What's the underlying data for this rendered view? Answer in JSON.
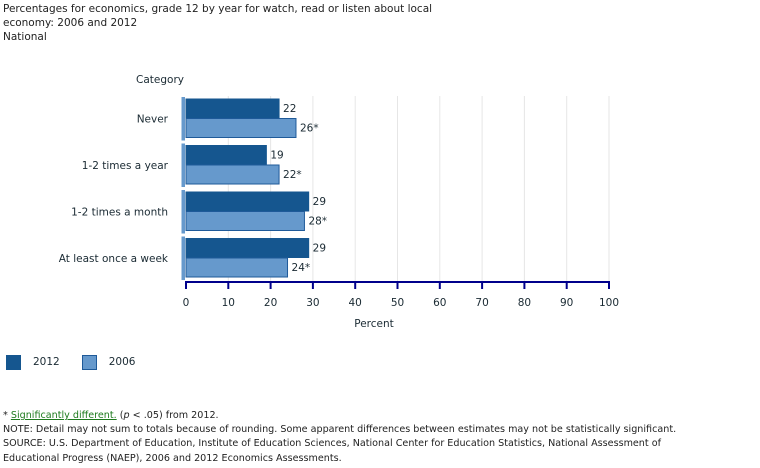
{
  "header": {
    "title_line1": "Percentages for economics, grade 12 by year for watch, read or listen about local",
    "title_line2": "economy: 2006 and 2012",
    "jurisdiction": "National"
  },
  "colors": {
    "series_2012": "#15568f",
    "series_2006": "#6699cc",
    "series_2006_border": "#1f5a99",
    "axis": "#00008b",
    "grid": "#e6e6e6",
    "link": "#1d7a1d"
  },
  "chart_data": {
    "type": "bar",
    "orientation": "horizontal",
    "title": "Percentages for economics, grade 12 by year for watch, read or listen about local economy: 2006 and 2012",
    "subtitle": "National",
    "ylabel": "Category",
    "xlabel": "Percent",
    "xlim": [
      0,
      100
    ],
    "xticks": [
      0,
      10,
      20,
      30,
      40,
      50,
      60,
      70,
      80,
      90,
      100
    ],
    "grid": true,
    "legend_position": "bottom-left",
    "categories": [
      "Never",
      "1-2 times a year",
      "1-2 times a month",
      "At least once a week"
    ],
    "series": [
      {
        "name": "2012",
        "values": [
          22,
          19,
          29,
          29
        ],
        "labels": [
          "22",
          "19",
          "29",
          "29"
        ]
      },
      {
        "name": "2006",
        "values": [
          26,
          22,
          28,
          24
        ],
        "labels": [
          "26*",
          "22*",
          "28*",
          "24*"
        ]
      }
    ]
  },
  "legend": [
    {
      "label": "2012"
    },
    {
      "label": "2006"
    }
  ],
  "footnotes": {
    "star": "* ",
    "sig_link": "Significantly different.",
    "sig_paren_open": " (",
    "sig_p": "p",
    "sig_rest": " < .05) from 2012.",
    "note": "NOTE:  Detail may not sum to totals because of rounding. Some apparent differences between estimates may not be statistically significant.",
    "source_line1": "SOURCE: U.S. Department of Education, Institute of Education Sciences, National Center for Education Statistics, National Assessment of",
    "source_line2": "Educational Progress (NAEP), 2006 and 2012 Economics Assessments."
  }
}
